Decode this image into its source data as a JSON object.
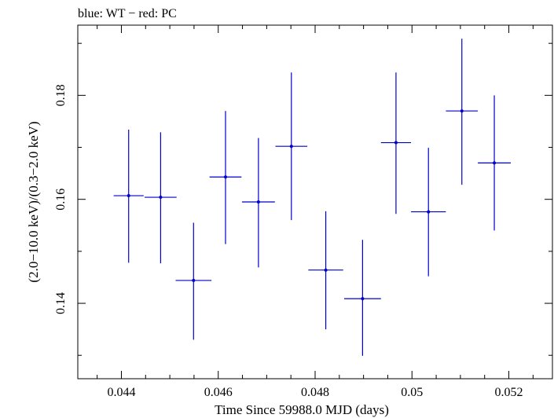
{
  "chart_data": {
    "type": "scatter",
    "title": "blue: WT − red: PC",
    "xlabel": "Time Since 59988.0 MJD (days)",
    "ylabel": "(2.0−10.0 keV)/(0.3−2.0 keV)",
    "xlim": [
      0.0431,
      0.0529
    ],
    "ylim": [
      0.1255,
      0.1935
    ],
    "x_ticks": [
      {
        "value": 0.044,
        "label": "0.044"
      },
      {
        "value": 0.046,
        "label": "0.046"
      },
      {
        "value": 0.048,
        "label": "0.048"
      },
      {
        "value": 0.05,
        "label": "0.05"
      },
      {
        "value": 0.052,
        "label": "0.052"
      }
    ],
    "y_ticks": [
      {
        "value": 0.14,
        "label": "0.14"
      },
      {
        "value": 0.16,
        "label": "0.16"
      },
      {
        "value": 0.18,
        "label": "0.18"
      }
    ],
    "grid": false,
    "series": [
      {
        "color": "#0000cc",
        "points": [
          {
            "x": 0.04415,
            "y": 0.1607,
            "xerr": 0.00031,
            "ylo": 0.1478,
            "yhi": 0.1734
          },
          {
            "x": 0.04481,
            "y": 0.1604,
            "xerr": 0.00033,
            "ylo": 0.1477,
            "yhi": 0.1729
          },
          {
            "x": 0.04549,
            "y": 0.1444,
            "xerr": 0.00037,
            "ylo": 0.133,
            "yhi": 0.1555
          },
          {
            "x": 0.04615,
            "y": 0.1643,
            "xerr": 0.00033,
            "ylo": 0.1514,
            "yhi": 0.177
          },
          {
            "x": 0.04683,
            "y": 0.1595,
            "xerr": 0.00034,
            "ylo": 0.1469,
            "yhi": 0.1718
          },
          {
            "x": 0.04751,
            "y": 0.1702,
            "xerr": 0.00033,
            "ylo": 0.156,
            "yhi": 0.1844
          },
          {
            "x": 0.04822,
            "y": 0.1464,
            "xerr": 0.00036,
            "ylo": 0.135,
            "yhi": 0.1577
          },
          {
            "x": 0.04898,
            "y": 0.1409,
            "xerr": 0.00038,
            "ylo": 0.1299,
            "yhi": 0.1522
          },
          {
            "x": 0.04967,
            "y": 0.1709,
            "xerr": 0.00031,
            "ylo": 0.1572,
            "yhi": 0.1844
          },
          {
            "x": 0.05034,
            "y": 0.1576,
            "xerr": 0.00036,
            "ylo": 0.1452,
            "yhi": 0.1699
          },
          {
            "x": 0.05103,
            "y": 0.177,
            "xerr": 0.00033,
            "ylo": 0.1628,
            "yhi": 0.1909
          },
          {
            "x": 0.0517,
            "y": 0.167,
            "xerr": 0.00034,
            "ylo": 0.154,
            "yhi": 0.18
          }
        ]
      }
    ]
  }
}
